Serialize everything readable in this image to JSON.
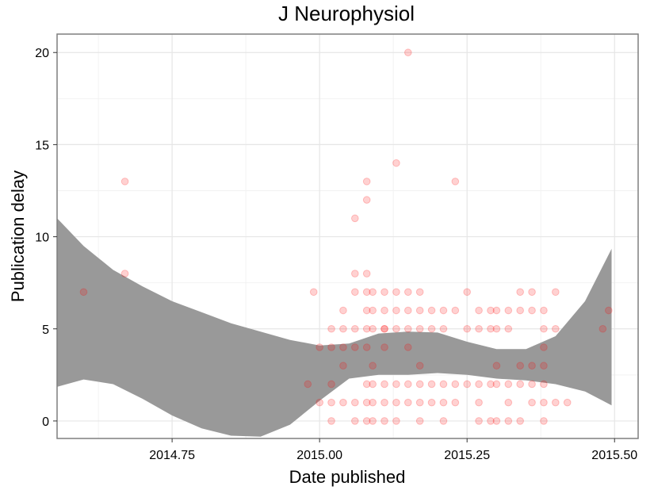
{
  "chart_data": {
    "type": "scatter",
    "title": "J Neurophysiol",
    "xlabel": "Date published",
    "ylabel": "Publication delay",
    "xlim": [
      2014.555,
      2015.54
    ],
    "ylim": [
      -0.95,
      21.0
    ],
    "x_ticks": [
      2014.75,
      2015.0,
      2015.25,
      2015.5
    ],
    "x_tick_labels": [
      "2014.75",
      "2015.00",
      "2015.25",
      "2015.50"
    ],
    "y_ticks": [
      0,
      5,
      10,
      15,
      20
    ],
    "y_tick_labels": [
      "0",
      "5",
      "10",
      "15",
      "20"
    ],
    "grid": true,
    "point_color": "#ff0000",
    "band_color": "#999999",
    "points": [
      {
        "x": 2014.6,
        "y": 7
      },
      {
        "x": 2014.67,
        "y": 13
      },
      {
        "x": 2014.67,
        "y": 8
      },
      {
        "x": 2014.98,
        "y": 2
      },
      {
        "x": 2014.99,
        "y": 7
      },
      {
        "x": 2015.0,
        "y": 4
      },
      {
        "x": 2015.0,
        "y": 1
      },
      {
        "x": 2015.02,
        "y": 5
      },
      {
        "x": 2015.02,
        "y": 4
      },
      {
        "x": 2015.02,
        "y": 2
      },
      {
        "x": 2015.02,
        "y": 1
      },
      {
        "x": 2015.02,
        "y": 0
      },
      {
        "x": 2015.04,
        "y": 6
      },
      {
        "x": 2015.04,
        "y": 5
      },
      {
        "x": 2015.04,
        "y": 4
      },
      {
        "x": 2015.04,
        "y": 3
      },
      {
        "x": 2015.04,
        "y": 1
      },
      {
        "x": 2015.06,
        "y": 11
      },
      {
        "x": 2015.06,
        "y": 8
      },
      {
        "x": 2015.06,
        "y": 7
      },
      {
        "x": 2015.06,
        "y": 5
      },
      {
        "x": 2015.06,
        "y": 4
      },
      {
        "x": 2015.06,
        "y": 1
      },
      {
        "x": 2015.06,
        "y": 0
      },
      {
        "x": 2015.08,
        "y": 13
      },
      {
        "x": 2015.08,
        "y": 12
      },
      {
        "x": 2015.08,
        "y": 8
      },
      {
        "x": 2015.08,
        "y": 7
      },
      {
        "x": 2015.08,
        "y": 6
      },
      {
        "x": 2015.08,
        "y": 5
      },
      {
        "x": 2015.08,
        "y": 4
      },
      {
        "x": 2015.08,
        "y": 2
      },
      {
        "x": 2015.08,
        "y": 1
      },
      {
        "x": 2015.08,
        "y": 0
      },
      {
        "x": 2015.09,
        "y": 7
      },
      {
        "x": 2015.09,
        "y": 6
      },
      {
        "x": 2015.09,
        "y": 5
      },
      {
        "x": 2015.09,
        "y": 3
      },
      {
        "x": 2015.09,
        "y": 2
      },
      {
        "x": 2015.09,
        "y": 1
      },
      {
        "x": 2015.09,
        "y": 0
      },
      {
        "x": 2015.11,
        "y": 7
      },
      {
        "x": 2015.11,
        "y": 6
      },
      {
        "x": 2015.11,
        "y": 5
      },
      {
        "x": 2015.11,
        "y": 5
      },
      {
        "x": 2015.11,
        "y": 4
      },
      {
        "x": 2015.11,
        "y": 2
      },
      {
        "x": 2015.11,
        "y": 1
      },
      {
        "x": 2015.11,
        "y": 0
      },
      {
        "x": 2015.13,
        "y": 14
      },
      {
        "x": 2015.13,
        "y": 7
      },
      {
        "x": 2015.13,
        "y": 6
      },
      {
        "x": 2015.13,
        "y": 5
      },
      {
        "x": 2015.13,
        "y": 2
      },
      {
        "x": 2015.13,
        "y": 1
      },
      {
        "x": 2015.13,
        "y": 0
      },
      {
        "x": 2015.15,
        "y": 20
      },
      {
        "x": 2015.15,
        "y": 7
      },
      {
        "x": 2015.15,
        "y": 6
      },
      {
        "x": 2015.15,
        "y": 5
      },
      {
        "x": 2015.15,
        "y": 4
      },
      {
        "x": 2015.15,
        "y": 2
      },
      {
        "x": 2015.15,
        "y": 1
      },
      {
        "x": 2015.17,
        "y": 7
      },
      {
        "x": 2015.17,
        "y": 6
      },
      {
        "x": 2015.17,
        "y": 5
      },
      {
        "x": 2015.17,
        "y": 3
      },
      {
        "x": 2015.17,
        "y": 2
      },
      {
        "x": 2015.17,
        "y": 1
      },
      {
        "x": 2015.17,
        "y": 0
      },
      {
        "x": 2015.19,
        "y": 6
      },
      {
        "x": 2015.19,
        "y": 5
      },
      {
        "x": 2015.19,
        "y": 2
      },
      {
        "x": 2015.19,
        "y": 1
      },
      {
        "x": 2015.21,
        "y": 6
      },
      {
        "x": 2015.21,
        "y": 5
      },
      {
        "x": 2015.21,
        "y": 2
      },
      {
        "x": 2015.21,
        "y": 1
      },
      {
        "x": 2015.21,
        "y": 0
      },
      {
        "x": 2015.23,
        "y": 13
      },
      {
        "x": 2015.23,
        "y": 6
      },
      {
        "x": 2015.23,
        "y": 2
      },
      {
        "x": 2015.23,
        "y": 1
      },
      {
        "x": 2015.25,
        "y": 7
      },
      {
        "x": 2015.25,
        "y": 5
      },
      {
        "x": 2015.25,
        "y": 2
      },
      {
        "x": 2015.27,
        "y": 6
      },
      {
        "x": 2015.27,
        "y": 5
      },
      {
        "x": 2015.27,
        "y": 2
      },
      {
        "x": 2015.27,
        "y": 1
      },
      {
        "x": 2015.27,
        "y": 0
      },
      {
        "x": 2015.29,
        "y": 6
      },
      {
        "x": 2015.29,
        "y": 5
      },
      {
        "x": 2015.29,
        "y": 2
      },
      {
        "x": 2015.29,
        "y": 0
      },
      {
        "x": 2015.3,
        "y": 6
      },
      {
        "x": 2015.3,
        "y": 5
      },
      {
        "x": 2015.3,
        "y": 3
      },
      {
        "x": 2015.3,
        "y": 2
      },
      {
        "x": 2015.3,
        "y": 0
      },
      {
        "x": 2015.32,
        "y": 6
      },
      {
        "x": 2015.32,
        "y": 5
      },
      {
        "x": 2015.32,
        "y": 2
      },
      {
        "x": 2015.32,
        "y": 1
      },
      {
        "x": 2015.32,
        "y": 0
      },
      {
        "x": 2015.34,
        "y": 7
      },
      {
        "x": 2015.34,
        "y": 6
      },
      {
        "x": 2015.34,
        "y": 3
      },
      {
        "x": 2015.34,
        "y": 2
      },
      {
        "x": 2015.34,
        "y": 0
      },
      {
        "x": 2015.36,
        "y": 7
      },
      {
        "x": 2015.36,
        "y": 6
      },
      {
        "x": 2015.36,
        "y": 3
      },
      {
        "x": 2015.36,
        "y": 2
      },
      {
        "x": 2015.36,
        "y": 1
      },
      {
        "x": 2015.38,
        "y": 6
      },
      {
        "x": 2015.38,
        "y": 5
      },
      {
        "x": 2015.38,
        "y": 4
      },
      {
        "x": 2015.38,
        "y": 3
      },
      {
        "x": 2015.38,
        "y": 2
      },
      {
        "x": 2015.38,
        "y": 1
      },
      {
        "x": 2015.38,
        "y": 0
      },
      {
        "x": 2015.4,
        "y": 7
      },
      {
        "x": 2015.4,
        "y": 5
      },
      {
        "x": 2015.4,
        "y": 1
      },
      {
        "x": 2015.42,
        "y": 1
      },
      {
        "x": 2015.48,
        "y": 5
      },
      {
        "x": 2015.49,
        "y": 6
      }
    ],
    "smooth_band": {
      "x": [
        2014.555,
        2014.6,
        2014.65,
        2014.7,
        2014.75,
        2014.8,
        2014.85,
        2014.9,
        2014.95,
        2015.0,
        2015.05,
        2015.1,
        2015.15,
        2015.2,
        2015.25,
        2015.3,
        2015.35,
        2015.4,
        2015.45,
        2015.495
      ],
      "upper": [
        11.0,
        9.5,
        8.2,
        7.3,
        6.5,
        5.9,
        5.3,
        4.85,
        4.4,
        4.1,
        4.2,
        4.75,
        4.85,
        4.8,
        4.3,
        3.9,
        3.9,
        4.6,
        6.5,
        9.35
      ],
      "lower": [
        1.85,
        2.25,
        2.0,
        1.2,
        0.3,
        -0.4,
        -0.8,
        -0.85,
        -0.2,
        1.1,
        2.3,
        2.5,
        2.5,
        2.6,
        2.5,
        2.3,
        2.2,
        2.0,
        1.6,
        0.85
      ]
    }
  }
}
